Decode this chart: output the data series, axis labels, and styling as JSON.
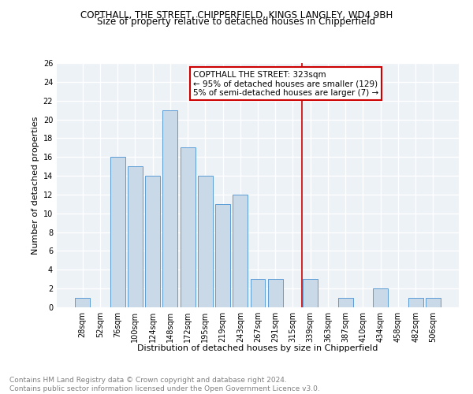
{
  "title": "COPTHALL, THE STREET, CHIPPERFIELD, KINGS LANGLEY, WD4 9BH",
  "subtitle": "Size of property relative to detached houses in Chipperfield",
  "xlabel": "Distribution of detached houses by size in Chipperfield",
  "ylabel": "Number of detached properties",
  "categories": [
    "28sqm",
    "52sqm",
    "76sqm",
    "100sqm",
    "124sqm",
    "148sqm",
    "172sqm",
    "195sqm",
    "219sqm",
    "243sqm",
    "267sqm",
    "291sqm",
    "315sqm",
    "339sqm",
    "363sqm",
    "387sqm",
    "410sqm",
    "434sqm",
    "458sqm",
    "482sqm",
    "506sqm"
  ],
  "values": [
    1,
    0,
    16,
    15,
    14,
    21,
    17,
    14,
    11,
    12,
    3,
    3,
    0,
    3,
    0,
    1,
    0,
    2,
    0,
    1,
    1
  ],
  "bar_color": "#c9d9e8",
  "bar_edge_color": "#5b9bd5",
  "vline_index": 12.5,
  "vline_color": "#cc0000",
  "annotation_text": "COPTHALL THE STREET: 323sqm\n← 95% of detached houses are smaller (129)\n5% of semi-detached houses are larger (7) →",
  "annotation_box_color": "#cc0000",
  "ylim": [
    0,
    26
  ],
  "yticks": [
    0,
    2,
    4,
    6,
    8,
    10,
    12,
    14,
    16,
    18,
    20,
    22,
    24,
    26
  ],
  "footer": "Contains HM Land Registry data © Crown copyright and database right 2024.\nContains public sector information licensed under the Open Government Licence v3.0.",
  "bg_color": "#edf2f7",
  "grid_color": "#ffffff",
  "title_fontsize": 8.5,
  "subtitle_fontsize": 8.5,
  "axis_label_fontsize": 8,
  "tick_fontsize": 7,
  "annotation_fontsize": 7.5,
  "footer_fontsize": 6.5
}
